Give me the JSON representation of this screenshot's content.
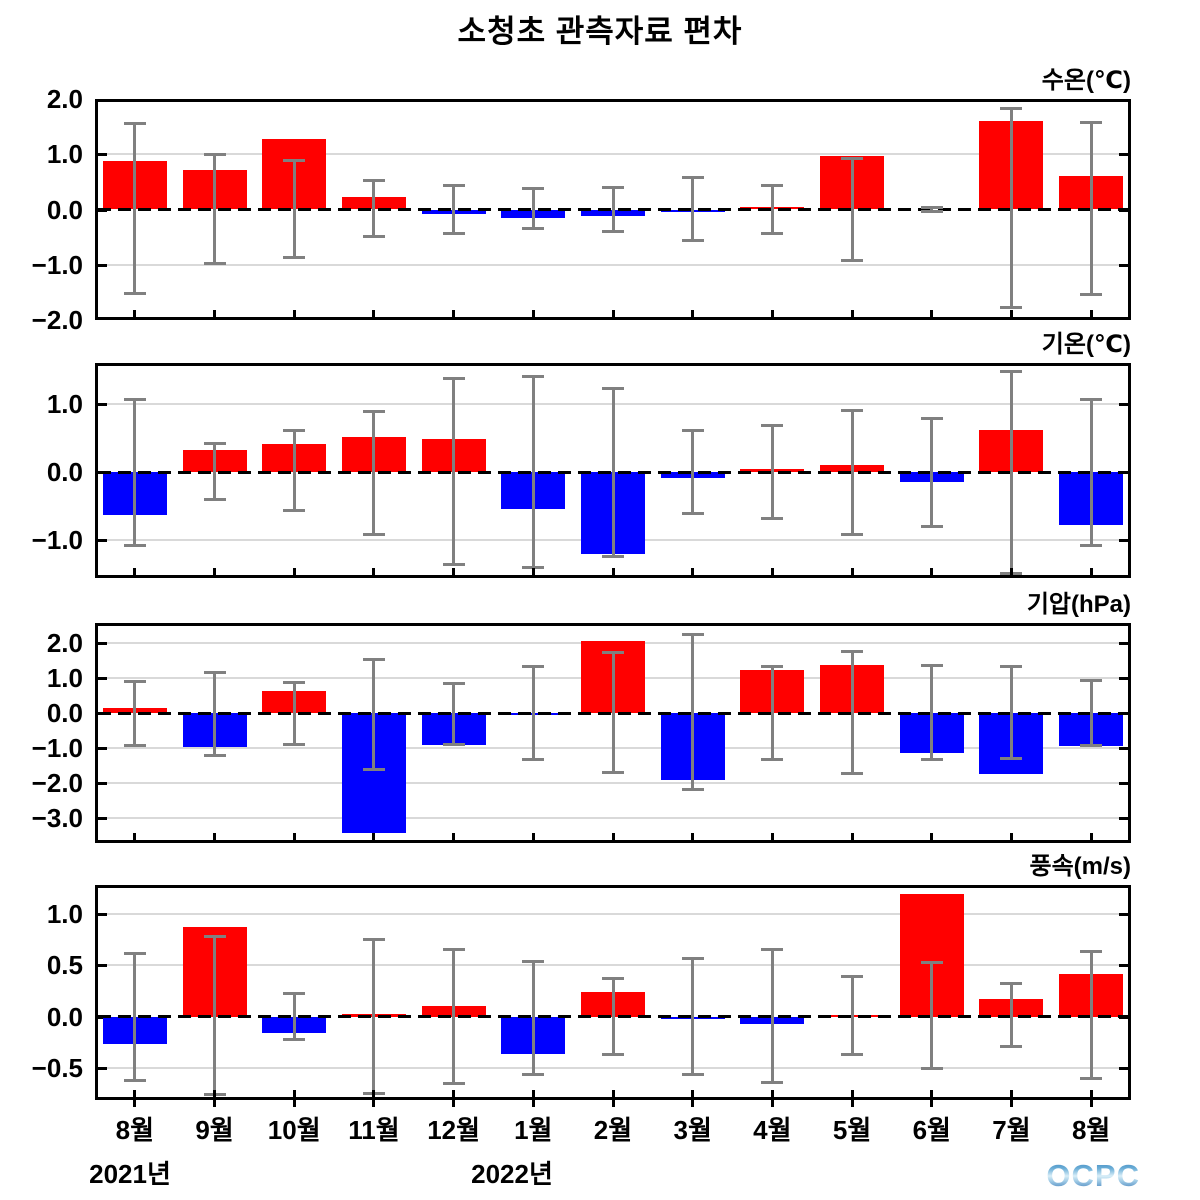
{
  "title": "소청초 관측자료 편차",
  "logo": {
    "text": "OCPC"
  },
  "colors": {
    "positive_bar": "#ff0000",
    "negative_bar": "#0000ff",
    "error_bar": "#808080",
    "gridline": "#d9d9d9",
    "zero_line": "#000000",
    "panel_border": "#000000"
  },
  "x": {
    "months": [
      "8월",
      "9월",
      "10월",
      "11월",
      "12월",
      "1월",
      "2월",
      "3월",
      "4월",
      "5월",
      "6월",
      "7월",
      "8월"
    ],
    "years": [
      {
        "label": "2021년"
      },
      {
        "label": "2022년"
      }
    ]
  },
  "chart_data": [
    {
      "type": "bar",
      "title": "수온(℃)",
      "ylim": [
        -2.0,
        2.0
      ],
      "yticks": [
        2.0,
        1.0,
        0.0,
        -1.0,
        -2.0
      ],
      "ytick_labels": [
        "2.0",
        "1.0",
        "0.0",
        "−1.0",
        "−2.0"
      ],
      "categories": [
        "8월",
        "9월",
        "10월",
        "11월",
        "12월",
        "1월",
        "2월",
        "3월",
        "4월",
        "5월",
        "6월",
        "7월",
        "8월"
      ],
      "values": [
        0.87,
        0.72,
        1.27,
        0.23,
        -0.08,
        -0.15,
        -0.12,
        -0.04,
        0.05,
        0.97,
        0.0,
        1.6,
        0.6
      ],
      "error_low": [
        -1.52,
        -0.97,
        -0.86,
        -0.48,
        -0.44,
        -0.34,
        -0.4,
        -0.57,
        -0.44,
        -0.92,
        -0.03,
        -1.78,
        -1.53
      ],
      "error_high": [
        1.56,
        1.0,
        0.89,
        0.52,
        0.44,
        0.38,
        0.4,
        0.58,
        0.44,
        0.92,
        0.03,
        1.82,
        1.57
      ]
    },
    {
      "type": "bar",
      "title": "기온(℃)",
      "ylim": [
        -1.55,
        1.6
      ],
      "yticks": [
        1.0,
        0.0,
        -1.0
      ],
      "ytick_labels": [
        "1.0",
        "0.0",
        "−1.0"
      ],
      "categories": [
        "8월",
        "9월",
        "10월",
        "11월",
        "12월",
        "1월",
        "2월",
        "3월",
        "4월",
        "5월",
        "6월",
        "7월",
        "8월"
      ],
      "values": [
        -0.62,
        0.33,
        0.42,
        0.52,
        0.48,
        -0.54,
        -1.2,
        -0.08,
        0.05,
        0.1,
        -0.14,
        0.62,
        -0.78
      ],
      "error_low": [
        -1.07,
        -0.4,
        -0.56,
        -0.91,
        -1.35,
        -1.4,
        -1.23,
        -0.61,
        -0.68,
        -0.91,
        -0.79,
        -1.48,
        -1.07
      ],
      "error_high": [
        1.07,
        0.42,
        0.61,
        0.89,
        1.38,
        1.4,
        1.23,
        0.61,
        0.68,
        0.9,
        0.79,
        1.47,
        1.07
      ]
    },
    {
      "type": "bar",
      "title": "기압(hPa)",
      "ylim": [
        -3.71,
        2.57
      ],
      "yticks": [
        2.0,
        1.0,
        0.0,
        -1.0,
        -2.0,
        -3.0
      ],
      "ytick_labels": [
        "2.0",
        "1.0",
        "0.0",
        "−1.0",
        "−2.0",
        "−3.0"
      ],
      "categories": [
        "8월",
        "9월",
        "10월",
        "11월",
        "12월",
        "1월",
        "2월",
        "3월",
        "4월",
        "5월",
        "6월",
        "7월",
        "8월"
      ],
      "values": [
        0.15,
        -0.97,
        0.63,
        -3.43,
        -0.9,
        -0.07,
        2.05,
        -1.9,
        1.22,
        1.38,
        -1.15,
        -1.75,
        -0.93
      ],
      "error_low": [
        -0.94,
        -1.22,
        -0.91,
        -1.61,
        -0.89,
        -1.33,
        -1.7,
        -2.19,
        -1.34,
        -1.74,
        -1.32,
        -1.31,
        -0.93
      ],
      "error_high": [
        0.89,
        1.15,
        0.87,
        1.53,
        0.83,
        1.32,
        1.73,
        2.23,
        1.34,
        1.77,
        1.35,
        1.34,
        0.94
      ]
    },
    {
      "type": "bar",
      "title": "풍속(m/s)",
      "ylim": [
        -0.81,
        1.28
      ],
      "yticks": [
        1.0,
        0.5,
        0.0,
        -0.5
      ],
      "ytick_labels": [
        "1.0",
        "0.5",
        "0.0",
        "−0.5"
      ],
      "categories": [
        "8월",
        "9월",
        "10월",
        "11월",
        "12월",
        "1월",
        "2월",
        "3월",
        "4월",
        "5월",
        "6월",
        "7월",
        "8월"
      ],
      "values": [
        -0.27,
        0.87,
        -0.16,
        0.03,
        0.1,
        -0.36,
        0.24,
        -0.02,
        -0.07,
        0.02,
        1.19,
        0.17,
        0.41
      ],
      "error_low": [
        -0.62,
        -0.76,
        -0.22,
        -0.75,
        -0.65,
        -0.56,
        -0.37,
        -0.56,
        -0.64,
        -0.37,
        -0.5,
        -0.29,
        -0.6
      ],
      "error_high": [
        0.61,
        0.78,
        0.23,
        0.75,
        0.65,
        0.54,
        0.37,
        0.57,
        0.65,
        0.39,
        0.53,
        0.32,
        0.63
      ]
    }
  ]
}
